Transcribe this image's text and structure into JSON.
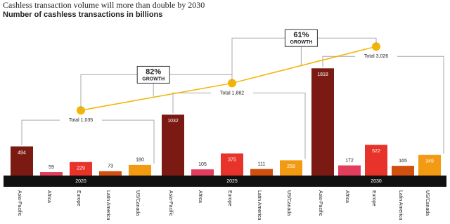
{
  "chart_data": {
    "type": "grouped-bar",
    "title": "Cashless transaction volume will more than double by 2030",
    "subtitle": "Number of cashless transactions in billions",
    "categories": [
      "Asia-Pacific",
      "Africa",
      "Europe",
      "Latin America",
      "US/Canada"
    ],
    "colors": [
      "#7b1a12",
      "#e23d5c",
      "#e8332a",
      "#d2500f",
      "#f29a12"
    ],
    "series": [
      {
        "name": "2020",
        "values": [
          494,
          59,
          229,
          73,
          180
        ]
      },
      {
        "name": "2025",
        "values": [
          1032,
          105,
          375,
          111,
          258
        ]
      },
      {
        "name": "2030",
        "values": [
          1818,
          172,
          522,
          165,
          349
        ]
      }
    ],
    "ylim": [
      0,
      2500
    ],
    "totals": {
      "label": "Total",
      "values": [
        1035,
        1882,
        3026
      ],
      "value_labels": [
        "1,035",
        "1,882",
        "3,026"
      ],
      "color": "#f5b400",
      "axis": "y2"
    },
    "y2lim": [
      -1000,
      3600
    ],
    "growth": {
      "values": [
        82,
        61
      ],
      "value_labels": [
        "82%",
        "61%"
      ],
      "label": "GROWTH"
    }
  }
}
